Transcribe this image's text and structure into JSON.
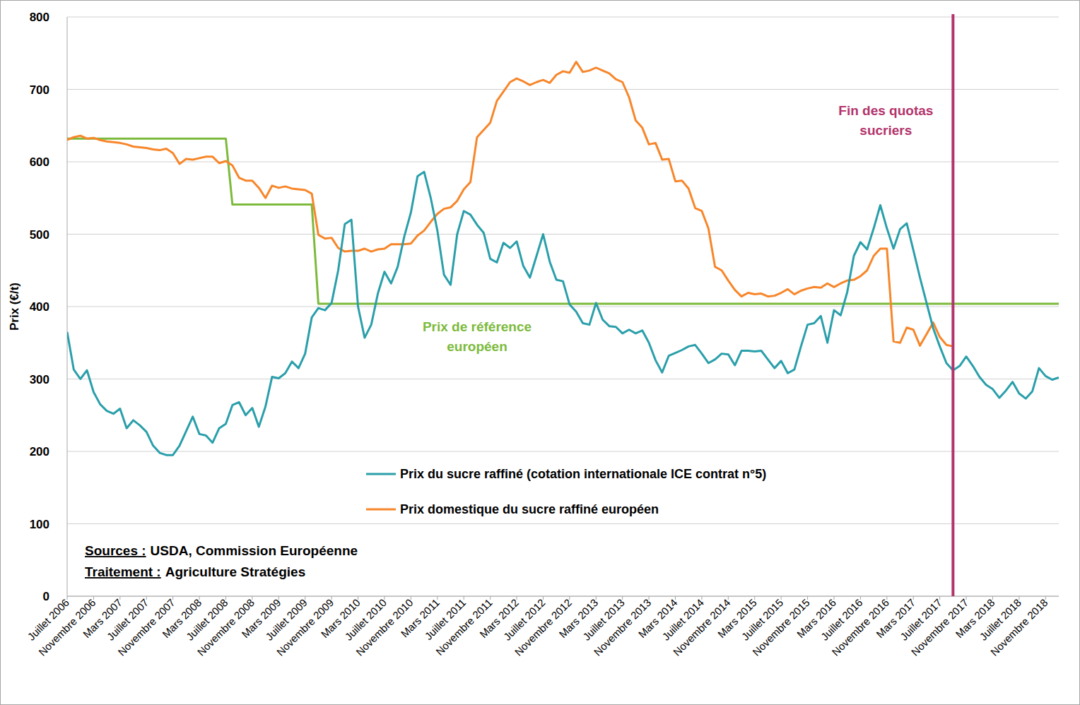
{
  "chart_data": {
    "type": "line",
    "y_label": "Prix (€/t)",
    "categories": [
      "Juillet 2006",
      null,
      null,
      null,
      "Novembre 2006",
      null,
      null,
      null,
      "Mars 2007",
      null,
      null,
      null,
      "Juillet 2007",
      null,
      null,
      null,
      "Novembre 2007",
      null,
      null,
      null,
      "Mars 2008",
      null,
      null,
      null,
      "Juillet 2008",
      null,
      null,
      null,
      "Novembre 2008",
      null,
      null,
      null,
      "Mars 2009",
      null,
      null,
      null,
      "Juillet 2009",
      null,
      null,
      null,
      "Novembre 2009",
      null,
      null,
      null,
      "Mars 2010",
      null,
      null,
      null,
      "Juillet 2010",
      null,
      null,
      null,
      "Novembre 2010",
      null,
      null,
      null,
      "Mars 2011",
      null,
      null,
      null,
      "Juillet 2011",
      null,
      null,
      null,
      "Novembre 2011",
      null,
      null,
      null,
      "Mars 2012",
      null,
      null,
      null,
      "Juillet 2012",
      null,
      null,
      null,
      "Novembre 2012",
      null,
      null,
      null,
      "Mars 2013",
      null,
      null,
      null,
      "Juillet 2013",
      null,
      null,
      null,
      "Novembre 2013",
      null,
      null,
      null,
      "Mars 2014",
      null,
      null,
      null,
      "Juillet 2014",
      null,
      null,
      null,
      "Novembre 2014",
      null,
      null,
      null,
      "Mars 2015",
      null,
      null,
      null,
      "Juillet 2015",
      null,
      null,
      null,
      "Novembre 2015",
      null,
      null,
      null,
      "Mars 2016",
      null,
      null,
      null,
      "Juillet 2016",
      null,
      null,
      null,
      "Novembre 2016",
      null,
      null,
      null,
      "Mars 2017",
      null,
      null,
      null,
      "Juillet 2017",
      null,
      null,
      null,
      "Novembre 2017",
      null,
      null,
      null,
      "Mars 2018",
      null,
      null,
      null,
      "Juillet 2018",
      null,
      null,
      null,
      "Novembre 2018",
      null,
      null
    ],
    "series": [
      {
        "name": "Prix du sucre raffiné (cotation internationale ICE contrat n°5)",
        "color": "#2a9faa",
        "values": [
          365,
          313,
          300,
          312,
          282,
          265,
          256,
          252,
          259,
          232,
          243,
          236,
          227,
          208,
          198,
          195,
          195,
          208,
          228,
          248,
          224,
          222,
          212,
          232,
          238,
          264,
          268,
          250,
          260,
          234,
          262,
          303,
          301,
          308,
          324,
          315,
          335,
          385,
          398,
          395,
          405,
          450,
          514,
          520,
          400,
          357,
          375,
          418,
          448,
          432,
          455,
          497,
          530,
          580,
          586,
          550,
          505,
          444,
          430,
          500,
          532,
          527,
          513,
          502,
          466,
          461,
          488,
          481,
          490,
          456,
          440,
          470,
          500,
          462,
          437,
          435,
          403,
          393,
          377,
          375,
          405,
          382,
          373,
          372,
          363,
          368,
          363,
          367,
          350,
          326,
          309,
          332,
          336,
          340,
          345,
          347,
          335,
          322,
          327,
          335,
          334,
          319,
          339,
          339,
          338,
          339,
          327,
          315,
          325,
          308,
          313,
          345,
          375,
          377,
          387,
          350,
          395,
          388,
          420,
          470,
          489,
          479,
          508,
          540,
          508,
          480,
          507,
          515,
          478,
          440,
          405,
          370,
          345,
          322,
          312,
          318,
          331,
          318,
          303,
          292,
          286,
          274,
          284,
          296,
          280,
          273,
          283,
          315,
          304,
          299,
          302
        ]
      },
      {
        "name": "Prix domestique du sucre raffiné européen",
        "color": "#f7862a",
        "values": [
          630,
          634,
          636,
          632,
          633,
          630,
          628,
          627,
          626,
          624,
          621,
          620,
          619,
          617,
          616,
          618,
          612,
          597,
          604,
          603,
          605,
          607,
          607,
          598,
          601,
          595,
          578,
          574,
          574,
          564,
          550,
          567,
          564,
          566,
          563,
          562,
          561,
          556,
          499,
          494,
          495,
          481,
          476,
          477,
          477,
          480,
          476,
          479,
          480,
          486,
          486,
          486,
          487,
          498,
          505,
          517,
          528,
          535,
          537,
          546,
          562,
          572,
          634,
          644,
          654,
          684,
          697,
          710,
          715,
          711,
          706,
          710,
          713,
          709,
          720,
          725,
          723,
          738,
          724,
          726,
          730,
          726,
          722,
          714,
          710,
          689,
          657,
          647,
          624,
          626,
          603,
          604,
          573,
          574,
          563,
          536,
          532,
          508,
          455,
          450,
          436,
          423,
          414,
          419,
          417,
          418,
          414,
          415,
          419,
          424,
          417,
          422,
          425,
          427,
          426,
          432,
          427,
          432,
          436,
          437,
          442,
          450,
          470,
          480,
          480,
          352,
          350,
          371,
          368,
          346,
          362,
          378,
          358,
          347,
          345,
          null,
          null,
          null,
          null,
          null,
          null,
          null,
          null,
          null,
          null,
          null,
          null,
          null,
          null,
          null,
          null
        ]
      },
      {
        "name": "Prix de référence européen",
        "color": "#7cba3c",
        "values": [
          632,
          632,
          632,
          632,
          632,
          632,
          632,
          632,
          632,
          632,
          632,
          632,
          632,
          632,
          632,
          632,
          632,
          632,
          632,
          632,
          632,
          632,
          632,
          632,
          632,
          541,
          541,
          541,
          541,
          541,
          541,
          541,
          541,
          541,
          541,
          541,
          541,
          541,
          404,
          404,
          404,
          404,
          404,
          404,
          404,
          404,
          404,
          404,
          404,
          404,
          404,
          404,
          404,
          404,
          404,
          404,
          404,
          404,
          404,
          404,
          404,
          404,
          404,
          404,
          404,
          404,
          404,
          404,
          404,
          404,
          404,
          404,
          404,
          404,
          404,
          404,
          404,
          404,
          404,
          404,
          404,
          404,
          404,
          404,
          404,
          404,
          404,
          404,
          404,
          404,
          404,
          404,
          404,
          404,
          404,
          404,
          404,
          404,
          404,
          404,
          404,
          404,
          404,
          404,
          404,
          404,
          404,
          404,
          404,
          404,
          404,
          404,
          404,
          404,
          404,
          404,
          404,
          404,
          404,
          404,
          404,
          404,
          404,
          404,
          404,
          404,
          404,
          404,
          404,
          404,
          404,
          404,
          404,
          404,
          404,
          404,
          404,
          404,
          404,
          404,
          404,
          404,
          404,
          404,
          404,
          404,
          404,
          404,
          404,
          404,
          404
        ]
      }
    ],
    "ylim": [
      0,
      800
    ],
    "yticks": [
      0,
      100,
      200,
      300,
      400,
      500,
      600,
      700,
      800
    ],
    "grid": true,
    "annotations": [
      {
        "text": "Fin des quotas sucriers",
        "x": 134,
        "color": "#b3346c"
      }
    ],
    "notes": [
      {
        "label": "Sources :",
        "text": "USDA, Commission Européenne"
      },
      {
        "label": "Traitement :",
        "text": "Agriculture Stratégies"
      }
    ]
  }
}
